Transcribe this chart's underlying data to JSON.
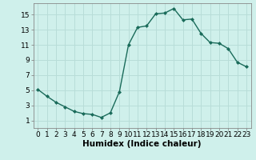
{
  "x": [
    0,
    1,
    2,
    3,
    4,
    5,
    6,
    7,
    8,
    9,
    10,
    11,
    12,
    13,
    14,
    15,
    16,
    17,
    18,
    19,
    20,
    21,
    22,
    23
  ],
  "y": [
    5.1,
    4.2,
    3.4,
    2.8,
    2.2,
    1.9,
    1.8,
    1.4,
    2.0,
    4.8,
    11.0,
    13.3,
    13.5,
    15.1,
    15.2,
    15.8,
    14.3,
    14.4,
    12.5,
    11.3,
    11.2,
    10.5,
    8.7,
    8.1
  ],
  "line_color": "#1a6b5a",
  "marker": "D",
  "marker_size": 2.0,
  "bg_color": "#cff0eb",
  "grid_color": "#b8ddd8",
  "xlabel": "Humidex (Indice chaleur)",
  "xlim": [
    -0.5,
    23.5
  ],
  "ylim": [
    0,
    16.5
  ],
  "xticks": [
    0,
    1,
    2,
    3,
    4,
    5,
    6,
    7,
    8,
    9,
    10,
    11,
    12,
    13,
    14,
    15,
    16,
    17,
    18,
    19,
    20,
    21,
    22,
    23
  ],
  "yticks": [
    1,
    3,
    5,
    7,
    9,
    11,
    13,
    15
  ],
  "tick_fontsize": 6.5,
  "xlabel_fontsize": 7.5,
  "linewidth": 1.0
}
